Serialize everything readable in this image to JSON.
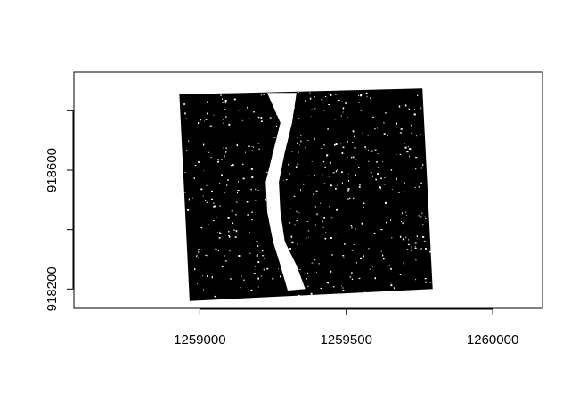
{
  "chart_data": {
    "type": "raster",
    "title": "",
    "xlabel": "",
    "ylabel": "",
    "xlim": [
      1258570,
      1260170
    ],
    "ylim": [
      918135,
      918930
    ],
    "x_ticks": [
      {
        "value": 1259000,
        "label": "1259000"
      },
      {
        "value": 1259500,
        "label": "1259500"
      },
      {
        "value": 1260000,
        "label": "1260000"
      }
    ],
    "y_ticks": [
      {
        "value": 918200,
        "label": "918200"
      },
      {
        "value": 918600,
        "label": "918600"
      }
    ],
    "y_minor_ticks": [
      918400,
      918800
    ],
    "footprint": [
      [
        1258930,
        918855
      ],
      [
        1259760,
        918875
      ],
      [
        1259795,
        918200
      ],
      [
        1258965,
        918160
      ]
    ],
    "foreground_color": "#000000",
    "background_color": "#ffffff",
    "gap_feature": [
      [
        1259230,
        918860
      ],
      [
        1259330,
        918860
      ],
      [
        1259315,
        918760
      ],
      [
        1259290,
        918660
      ],
      [
        1259270,
        918560
      ],
      [
        1259275,
        918460
      ],
      [
        1259290,
        918360
      ],
      [
        1259330,
        918280
      ],
      [
        1259360,
        918200
      ],
      [
        1259300,
        918195
      ],
      [
        1259275,
        918280
      ],
      [
        1259250,
        918360
      ],
      [
        1259230,
        918460
      ],
      [
        1259225,
        918560
      ],
      [
        1259250,
        918660
      ],
      [
        1259275,
        918760
      ]
    ]
  }
}
